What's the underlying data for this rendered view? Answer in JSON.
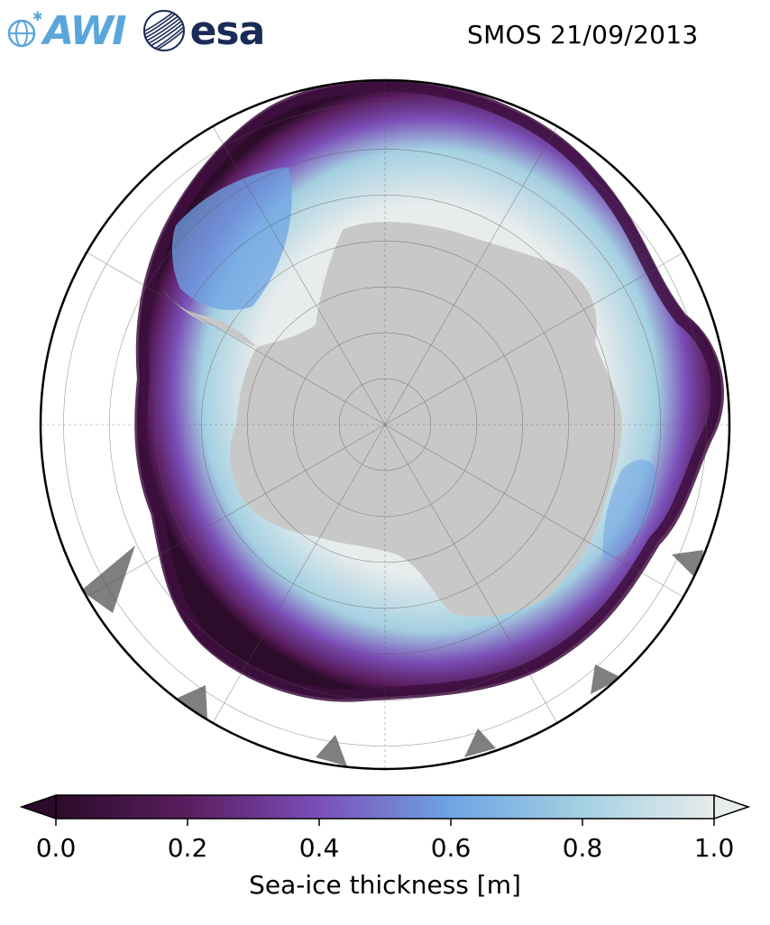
{
  "header": {
    "logo_left": "AWI",
    "logo_right": "esa",
    "title": "SMOS 21/09/2013"
  },
  "colors": {
    "land": "#c8c8c8",
    "thick_ice": "#e8ecec",
    "ocean": "#ffffff",
    "ice_shelf_grey": "#7f7f7f",
    "awi_blue": "#5aa6dc",
    "esa_navy": "#1b2b57"
  },
  "colorbar": {
    "label": "Sea-ice thickness [m]",
    "min": 0.0,
    "max": 1.0,
    "ticks": [
      "0.0",
      "0.2",
      "0.4",
      "0.6",
      "0.8",
      "1.0"
    ],
    "tick_values": [
      0.0,
      0.2,
      0.4,
      0.6,
      0.8,
      1.0
    ],
    "extend": "both",
    "colormap": [
      "#2d0b2a",
      "#5a1d5f",
      "#7b4fb8",
      "#6ea4e4",
      "#a4d0e2",
      "#e8ecec"
    ]
  },
  "map": {
    "projection": "south polar stereographic",
    "meridian_count": 12,
    "parallel_count": 7
  }
}
